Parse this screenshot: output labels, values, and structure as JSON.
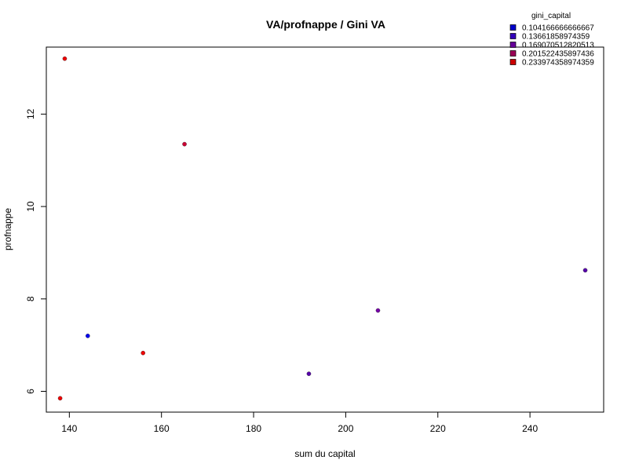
{
  "chart_data": {
    "type": "scatter",
    "title": "VA/profnappe / Gini VA",
    "xlabel": "sum du capital",
    "ylabel": "profnappe",
    "xlim": [
      135,
      256
    ],
    "ylim": [
      5.55,
      13.45
    ],
    "x_ticks": [
      140,
      160,
      180,
      200,
      220,
      240
    ],
    "y_ticks": [
      6,
      8,
      10,
      12
    ],
    "grid": false,
    "legend": {
      "title": "gini_capital",
      "position": "top-right",
      "entries": [
        {
          "label": "0.104166666666667",
          "color": "#0000cc"
        },
        {
          "label": "0.13661858974359",
          "color": "#3300bb"
        },
        {
          "label": "0.169070512820513",
          "color": "#660099"
        },
        {
          "label": "0.201522435897436",
          "color": "#990055"
        },
        {
          "label": "0.233974358974359",
          "color": "#cc0000"
        }
      ]
    },
    "points": [
      {
        "x": 139,
        "y": 13.2,
        "color": "#ee0000"
      },
      {
        "x": 165,
        "y": 11.35,
        "color": "#cc0033"
      },
      {
        "x": 252,
        "y": 8.62,
        "color": "#5500aa"
      },
      {
        "x": 207,
        "y": 7.75,
        "color": "#7700aa"
      },
      {
        "x": 144,
        "y": 7.2,
        "color": "#0000ee"
      },
      {
        "x": 156,
        "y": 6.83,
        "color": "#ee0000"
      },
      {
        "x": 192,
        "y": 6.38,
        "color": "#5500aa"
      },
      {
        "x": 138,
        "y": 5.85,
        "color": "#ee0000"
      }
    ]
  }
}
